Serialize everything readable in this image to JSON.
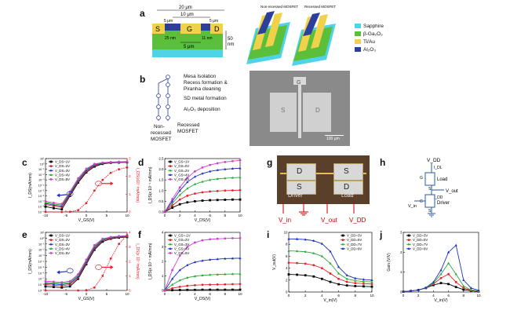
{
  "panels": {
    "a": {
      "label": "a",
      "dims": {
        "total": "20 μm",
        "gate": "10 μm",
        "left": "5 μm",
        "right": "5 μm",
        "recess": "5 μm",
        "thick": "50",
        "thick_unit": "nm",
        "t_left": "25 nm",
        "t_right": "11 nm"
      },
      "region": {
        "s": "S",
        "g": "G",
        "d": "D"
      },
      "devices": {
        "non_recessed": "Non-recessed MOSFET",
        "recessed": "Recessed MOSFET"
      },
      "legend": [
        {
          "label": "Sapphire",
          "color": "#4fd3e6"
        },
        {
          "label": "β-Ga₂O₃",
          "color": "#5bbf3a"
        },
        {
          "label": "Ti/Au",
          "color": "#f0d24a"
        },
        {
          "label": "Al₂O₃",
          "color": "#2c3f9c"
        }
      ]
    },
    "b": {
      "label": "b",
      "steps": [
        "Mesa Isolation",
        "Recess formation &",
        "Piranha cleaning",
        "SD metal formation",
        "Al₂O₃ deposition"
      ],
      "left_branch": [
        "Non-",
        "recessed",
        "MOSFET"
      ],
      "right_branch": [
        "Recessed",
        "MOSFET"
      ],
      "sem": {
        "g": "G",
        "s": "S",
        "d": "D",
        "scale": "100 μm"
      }
    },
    "c": {
      "label": "c",
      "legend": [
        "V_DS=1V",
        "V_DS=2V",
        "V_DS=3V",
        "V_DS=4V",
        "V_DS=5V"
      ],
      "ylabel_left": "I_DS(mA/mm)",
      "ylabel_right": "I_DS(x10⁻³mA/mm)",
      "xlabel": "V_GS(V)"
    },
    "d": {
      "label": "d",
      "legend": [
        "V_GS=1V",
        "V_GS=0V",
        "V_GS=2V",
        "V_GS=4V",
        "V_GS=6V"
      ],
      "ylabel": "I_DS(x 10⁻¹ mA/mm)",
      "xlabel": "V_DS(V)"
    },
    "e": {
      "label": "e",
      "legend": [
        "V_DS=1V",
        "V_DS=2V",
        "V_DS=3V",
        "V_DS=4V",
        "V_DS=5V"
      ],
      "ylabel_left": "I_DS(mA/mm)",
      "ylabel_right": "I_DS(x 10⁻³mA/mm)",
      "xlabel": "V_GS(V)"
    },
    "f": {
      "label": "f",
      "legend": [
        "V_GS=-1V",
        "V_GS=2V",
        "V_GS=3V",
        "V_GS=4V",
        "V_GS=5V"
      ],
      "ylabel": "I_DS(x 10⁻¹ mA/mm)",
      "xlabel": "V_DS(V)"
    },
    "g": {
      "label": "g",
      "pads": {
        "d1": "D",
        "s1": "S",
        "s2": "S",
        "d2": "D"
      },
      "names": {
        "driver": "Driver",
        "load": "Load"
      },
      "terminals": {
        "vin": "V_in",
        "vout": "V_out",
        "vdd": "V_DD"
      }
    },
    "h": {
      "label": "h",
      "vdd": "V_DD",
      "idl": "I_DL",
      "load": "Load",
      "vout": "V_out",
      "idd": "I_DD",
      "driver": "Driver",
      "vin": "V_in",
      "g1": "G",
      "g2": "G",
      "s1": "S",
      "s2": "S"
    },
    "i": {
      "label": "i",
      "legend": [
        "V_DD=3V",
        "V_DD=5V",
        "V_DD=7V",
        "V_DD=9V"
      ],
      "ylabel": "V_out(V)",
      "xlabel": "V_in(V)"
    },
    "j": {
      "label": "j",
      "legend": [
        "V_DD=3V",
        "V_DD=5V",
        "V_DD=7V",
        "V_DD=9V"
      ],
      "ylabel": "Gain (V/V)",
      "xlabel": "V_in(V)"
    }
  },
  "chart_data": [
    {
      "id": "c",
      "type": "line",
      "yscale_left": "log",
      "x": [
        -10,
        -8,
        -6,
        -4,
        -2,
        0,
        2,
        4,
        6,
        8,
        10
      ],
      "xlim": [
        -10,
        10
      ],
      "xticks": [
        "-10",
        "-5",
        "0",
        "5",
        "10"
      ],
      "yticks_left": [
        "10⁻⁹",
        "10⁻⁸",
        "10⁻⁷",
        "10⁻⁶",
        "10⁻⁵",
        "10⁻⁴",
        "10⁻³",
        "10⁻²",
        "10⁻¹",
        "10⁰",
        "10¹"
      ],
      "yticks_right": [
        "0",
        "1",
        "2",
        "3"
      ],
      "series": [
        {
          "name": "V_DS=1V",
          "color": "#000000",
          "values_log": [
            -8.0,
            -8.3,
            -8.5,
            -6.0,
            -3.5,
            -1.6,
            -0.5,
            0.0,
            0.2,
            0.25,
            0.3
          ]
        },
        {
          "name": "V_DS=2V",
          "color": "#e8222a",
          "values_log": [
            -7.6,
            -7.9,
            -8.1,
            -5.8,
            -3.3,
            -1.4,
            -0.3,
            0.1,
            0.25,
            0.3,
            0.35
          ]
        },
        {
          "name": "V_DS=3V",
          "color": "#1a2fbf",
          "values_log": [
            -7.4,
            -7.7,
            -7.9,
            -5.6,
            -3.1,
            -1.2,
            -0.2,
            0.15,
            0.3,
            0.35,
            0.4
          ]
        },
        {
          "name": "V_DS=4V",
          "color": "#2aa83a",
          "values_log": [
            -7.2,
            -7.5,
            -7.7,
            -5.4,
            -2.9,
            -1.0,
            -0.1,
            0.2,
            0.33,
            0.38,
            0.42
          ]
        },
        {
          "name": "V_DS=5V",
          "color": "#d13fd1",
          "values_log": [
            -7.0,
            -7.3,
            -7.5,
            -5.2,
            -2.7,
            -0.9,
            0.0,
            0.25,
            0.35,
            0.4,
            0.45
          ]
        }
      ],
      "linear_series": {
        "color": "#e8222a",
        "x": [
          -10,
          -6,
          -4,
          -2,
          0,
          2,
          4,
          6,
          8,
          10
        ],
        "values": [
          0,
          0,
          0.01,
          0.1,
          0.5,
          1.2,
          1.8,
          2.2,
          2.4,
          2.5
        ]
      }
    },
    {
      "id": "d",
      "type": "line",
      "xlim": [
        0,
        10
      ],
      "ylim": [
        0,
        2.5
      ],
      "xticks": [
        "0",
        "2",
        "4",
        "6",
        "8",
        "10"
      ],
      "yticks": [
        "0.0",
        "0.5",
        "1.0",
        "1.5",
        "2.0",
        "2.5"
      ],
      "x": [
        0,
        1,
        2,
        3,
        4,
        5,
        6,
        7,
        8,
        9,
        10
      ],
      "series": [
        {
          "name": "V_GS=1V",
          "color": "#000000",
          "values": [
            0,
            0.2,
            0.36,
            0.45,
            0.5,
            0.53,
            0.55,
            0.56,
            0.57,
            0.58,
            0.58
          ]
        },
        {
          "name": "V_GS=0V",
          "color": "#e8222a",
          "values": [
            0,
            0.3,
            0.58,
            0.76,
            0.86,
            0.92,
            0.96,
            0.98,
            1.0,
            1.01,
            1.02
          ]
        },
        {
          "name": "V_GS=2V",
          "color": "#2aa83a",
          "values": [
            0,
            0.4,
            0.8,
            1.1,
            1.3,
            1.42,
            1.5,
            1.55,
            1.58,
            1.6,
            1.62
          ]
        },
        {
          "name": "V_GS=4V",
          "color": "#1a2fbf",
          "values": [
            0,
            0.5,
            1.0,
            1.4,
            1.65,
            1.8,
            1.9,
            1.96,
            2.0,
            2.03,
            2.05
          ]
        },
        {
          "name": "V_GS=6V",
          "color": "#d13fd1",
          "values": [
            0,
            0.6,
            1.15,
            1.6,
            1.9,
            2.08,
            2.2,
            2.28,
            2.34,
            2.38,
            2.42
          ]
        }
      ]
    },
    {
      "id": "e",
      "type": "line",
      "yscale_left": "log",
      "x": [
        -10,
        -8,
        -6,
        -4,
        -2,
        0,
        2,
        4,
        6,
        8,
        10
      ],
      "xlim": [
        -10,
        10
      ],
      "xticks": [
        "-10",
        "-5",
        "0",
        "5",
        "10"
      ],
      "yticks_left": [
        "10⁻⁹",
        "10⁻⁸",
        "10⁻⁷",
        "10⁻⁶",
        "10⁻⁵",
        "10⁻⁴",
        "10⁻³",
        "10⁻²",
        "10⁻¹",
        "10⁰",
        "10¹"
      ],
      "yticks_right": [
        "0",
        "1",
        "2",
        "3",
        "4"
      ],
      "series": [
        {
          "name": "V_DS=1V",
          "color": "#000000",
          "values_log": [
            -8.3,
            -8.4,
            -8.5,
            -8.3,
            -7.0,
            -4.5,
            -2.0,
            -0.6,
            -0.1,
            0.1,
            0.2
          ]
        },
        {
          "name": "V_DS=2V",
          "color": "#e8222a",
          "values_log": [
            -8.0,
            -8.1,
            -8.2,
            -8.0,
            -6.8,
            -4.3,
            -1.8,
            -0.4,
            0.0,
            0.2,
            0.3
          ]
        },
        {
          "name": "V_DS=3V",
          "color": "#1a2fbf",
          "values_log": [
            -7.8,
            -7.9,
            -8.0,
            -7.8,
            -6.6,
            -4.1,
            -1.6,
            -0.3,
            0.1,
            0.25,
            0.35
          ]
        },
        {
          "name": "V_DS=4V",
          "color": "#2aa83a",
          "values_log": [
            -7.6,
            -7.7,
            -7.8,
            -7.6,
            -6.4,
            -3.9,
            -1.4,
            -0.2,
            0.15,
            0.3,
            0.4
          ]
        },
        {
          "name": "V_DS=5V",
          "color": "#d13fd1",
          "values_log": [
            -7.4,
            -7.5,
            -7.6,
            -7.4,
            -6.2,
            -3.7,
            -1.2,
            -0.1,
            0.2,
            0.35,
            0.45
          ]
        }
      ],
      "linear_series": {
        "color": "#e8222a",
        "x": [
          -10,
          -2,
          0,
          2,
          4,
          6,
          8,
          10
        ],
        "values": [
          0,
          0,
          0.01,
          0.2,
          1.0,
          2.2,
          3.2,
          3.8
        ]
      }
    },
    {
      "id": "f",
      "type": "line",
      "xlim": [
        0,
        10
      ],
      "ylim": [
        0,
        4
      ],
      "xticks": [
        "0",
        "2",
        "4",
        "6",
        "8",
        "10"
      ],
      "yticks": [
        "0",
        "1",
        "2",
        "3",
        "4"
      ],
      "x": [
        0,
        1,
        2,
        3,
        4,
        5,
        6,
        7,
        8,
        9,
        10
      ],
      "series": [
        {
          "name": "V_GS=-1V",
          "color": "#000000",
          "values": [
            0,
            0.02,
            0.03,
            0.04,
            0.04,
            0.05,
            0.05,
            0.05,
            0.05,
            0.05,
            0.05
          ]
        },
        {
          "name": "V_GS=2V",
          "color": "#e8222a",
          "values": [
            0,
            0.15,
            0.25,
            0.32,
            0.36,
            0.39,
            0.4,
            0.41,
            0.42,
            0.43,
            0.44
          ]
        },
        {
          "name": "V_GS=3V",
          "color": "#2aa83a",
          "values": [
            0,
            0.4,
            0.7,
            0.88,
            0.98,
            1.04,
            1.08,
            1.1,
            1.12,
            1.13,
            1.14
          ]
        },
        {
          "name": "V_GS=4V",
          "color": "#1a2fbf",
          "values": [
            0,
            0.8,
            1.4,
            1.75,
            1.95,
            2.05,
            2.12,
            2.16,
            2.19,
            2.21,
            2.22
          ]
        },
        {
          "name": "V_GS=5V",
          "color": "#d13fd1",
          "values": [
            0,
            1.4,
            2.4,
            3.0,
            3.3,
            3.45,
            3.52,
            3.56,
            3.58,
            3.6,
            3.6
          ]
        }
      ]
    },
    {
      "id": "i",
      "type": "line",
      "xlim": [
        0,
        10
      ],
      "ylim": [
        0,
        10
      ],
      "xticks": [
        "0",
        "2",
        "4",
        "6",
        "8",
        "10"
      ],
      "yticks": [
        "0",
        "2",
        "4",
        "6",
        "8",
        "10"
      ],
      "x": [
        0,
        1,
        2,
        3,
        4,
        5,
        6,
        7,
        8,
        9,
        10
      ],
      "series": [
        {
          "name": "V_DD=3V",
          "color": "#000000",
          "values": [
            2.95,
            2.9,
            2.8,
            2.6,
            2.2,
            1.7,
            1.3,
            1.1,
            1.0,
            0.95,
            0.9
          ]
        },
        {
          "name": "V_DD=5V",
          "color": "#e8222a",
          "values": [
            4.9,
            4.85,
            4.75,
            4.5,
            4.0,
            3.1,
            2.2,
            1.7,
            1.5,
            1.4,
            1.35
          ]
        },
        {
          "name": "V_DD=7V",
          "color": "#2aa83a",
          "values": [
            6.9,
            6.85,
            6.75,
            6.5,
            6.0,
            4.8,
            3.1,
            2.2,
            1.9,
            1.75,
            1.7
          ]
        },
        {
          "name": "V_DD=9V",
          "color": "#1a2fbf",
          "values": [
            8.9,
            8.88,
            8.8,
            8.6,
            8.1,
            6.8,
            4.2,
            2.8,
            2.3,
            2.1,
            2.0
          ]
        }
      ]
    },
    {
      "id": "j",
      "type": "line",
      "xlim": [
        0,
        10
      ],
      "ylim": [
        0,
        3
      ],
      "xticks": [
        "0",
        "2",
        "4",
        "6",
        "8",
        "10"
      ],
      "yticks": [
        "0",
        "1",
        "2",
        "3"
      ],
      "x": [
        0,
        1,
        2,
        3,
        4,
        5,
        6,
        7,
        8,
        9,
        10
      ],
      "series": [
        {
          "name": "V_DD=3V",
          "color": "#000000",
          "values": [
            0.02,
            0.05,
            0.1,
            0.2,
            0.35,
            0.45,
            0.4,
            0.25,
            0.12,
            0.06,
            0.03
          ]
        },
        {
          "name": "V_DD=5V",
          "color": "#e8222a",
          "values": [
            0.02,
            0.05,
            0.1,
            0.2,
            0.4,
            0.7,
            0.9,
            0.5,
            0.2,
            0.08,
            0.04
          ]
        },
        {
          "name": "V_DD=7V",
          "color": "#2aa83a",
          "values": [
            0.02,
            0.05,
            0.1,
            0.2,
            0.45,
            0.9,
            1.45,
            0.9,
            0.3,
            0.1,
            0.05
          ]
        },
        {
          "name": "V_DD=9V",
          "color": "#1a2fbf",
          "values": [
            0.02,
            0.05,
            0.1,
            0.22,
            0.5,
            1.1,
            2.0,
            2.35,
            0.6,
            0.2,
            0.08
          ]
        }
      ]
    }
  ]
}
